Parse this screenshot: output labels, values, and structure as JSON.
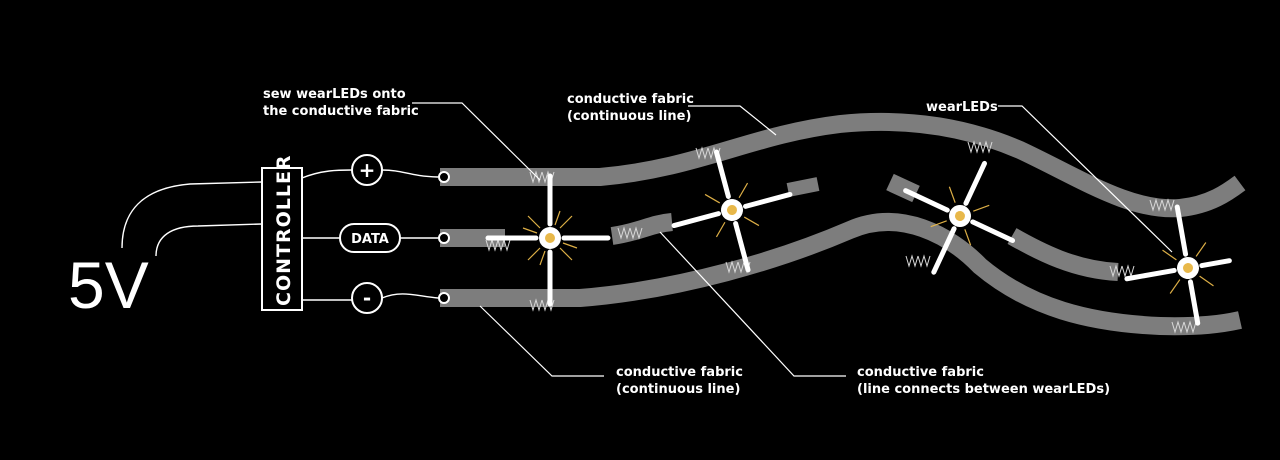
{
  "power": {
    "label": "5V"
  },
  "controller": {
    "label": "CONTROLLER"
  },
  "terminals": {
    "plus": "+",
    "data": "DATA",
    "minus": "-"
  },
  "labels": {
    "sew": [
      "sew wearLEDs onto",
      "the conductive fabric"
    ],
    "top_fabric": [
      "conductive fabric",
      "(continuous line)"
    ],
    "wearleds": [
      "wearLEDs"
    ],
    "bottom_fabric": [
      "conductive fabric",
      "(continuous line)"
    ],
    "middle_fabric": [
      "conductive fabric",
      "(line connects between wearLEDs)"
    ]
  },
  "colors": {
    "background": "#000000",
    "fabric": "#7d7d7d",
    "led_glow": "#e8b84a",
    "line": "#ffffff"
  }
}
